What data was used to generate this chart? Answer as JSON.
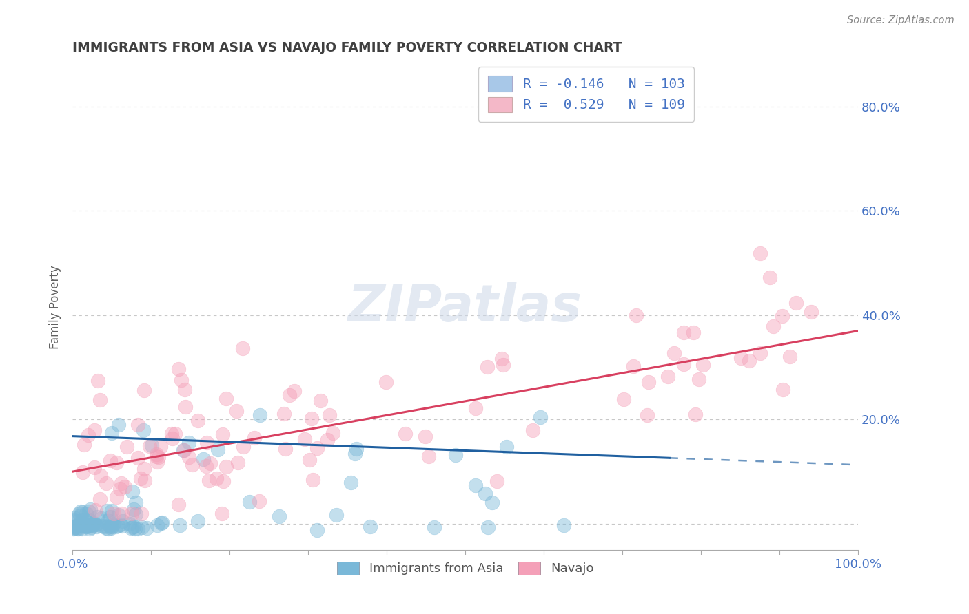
{
  "title": "IMMIGRANTS FROM ASIA VS NAVAJO FAMILY POVERTY CORRELATION CHART",
  "source": "Source: ZipAtlas.com",
  "ylabel": "Family Poverty",
  "xlim": [
    0,
    1.0
  ],
  "ylim": [
    -0.05,
    0.88
  ],
  "xtick_positions": [
    0.0,
    0.1,
    0.2,
    0.3,
    0.4,
    0.5,
    0.6,
    0.7,
    0.8,
    0.9,
    1.0
  ],
  "xtick_labels": [
    "0.0%",
    "",
    "",
    "",
    "",
    "",
    "",
    "",
    "",
    "",
    "100.0%"
  ],
  "ytick_positions": [
    0.0,
    0.2,
    0.4,
    0.6,
    0.8
  ],
  "ytick_labels": [
    "",
    "20.0%",
    "40.0%",
    "60.0%",
    "80.0%"
  ],
  "legend_r_entries": [
    {
      "label_r": "R = -0.146",
      "label_n": "N = 103",
      "color": "#a8c8e8"
    },
    {
      "label_r": "R =  0.529",
      "label_n": "N = 109",
      "color": "#f4b8c8"
    }
  ],
  "blue_scatter_color": "#7ab8d8",
  "pink_scatter_color": "#f4a0b8",
  "blue_line_color": "#2060a0",
  "pink_line_color": "#d84060",
  "blue_line_intercept": 0.168,
  "blue_line_slope": -0.055,
  "pink_line_intercept": 0.1,
  "pink_line_slope": 0.27,
  "blue_line_solid_end": 0.76,
  "watermark_text": "ZIPatlas",
  "background_color": "#ffffff",
  "grid_color": "#c8c8c8",
  "title_color": "#404040",
  "source_color": "#888888",
  "axis_label_color": "#606060",
  "tick_label_color": "#4472c4"
}
